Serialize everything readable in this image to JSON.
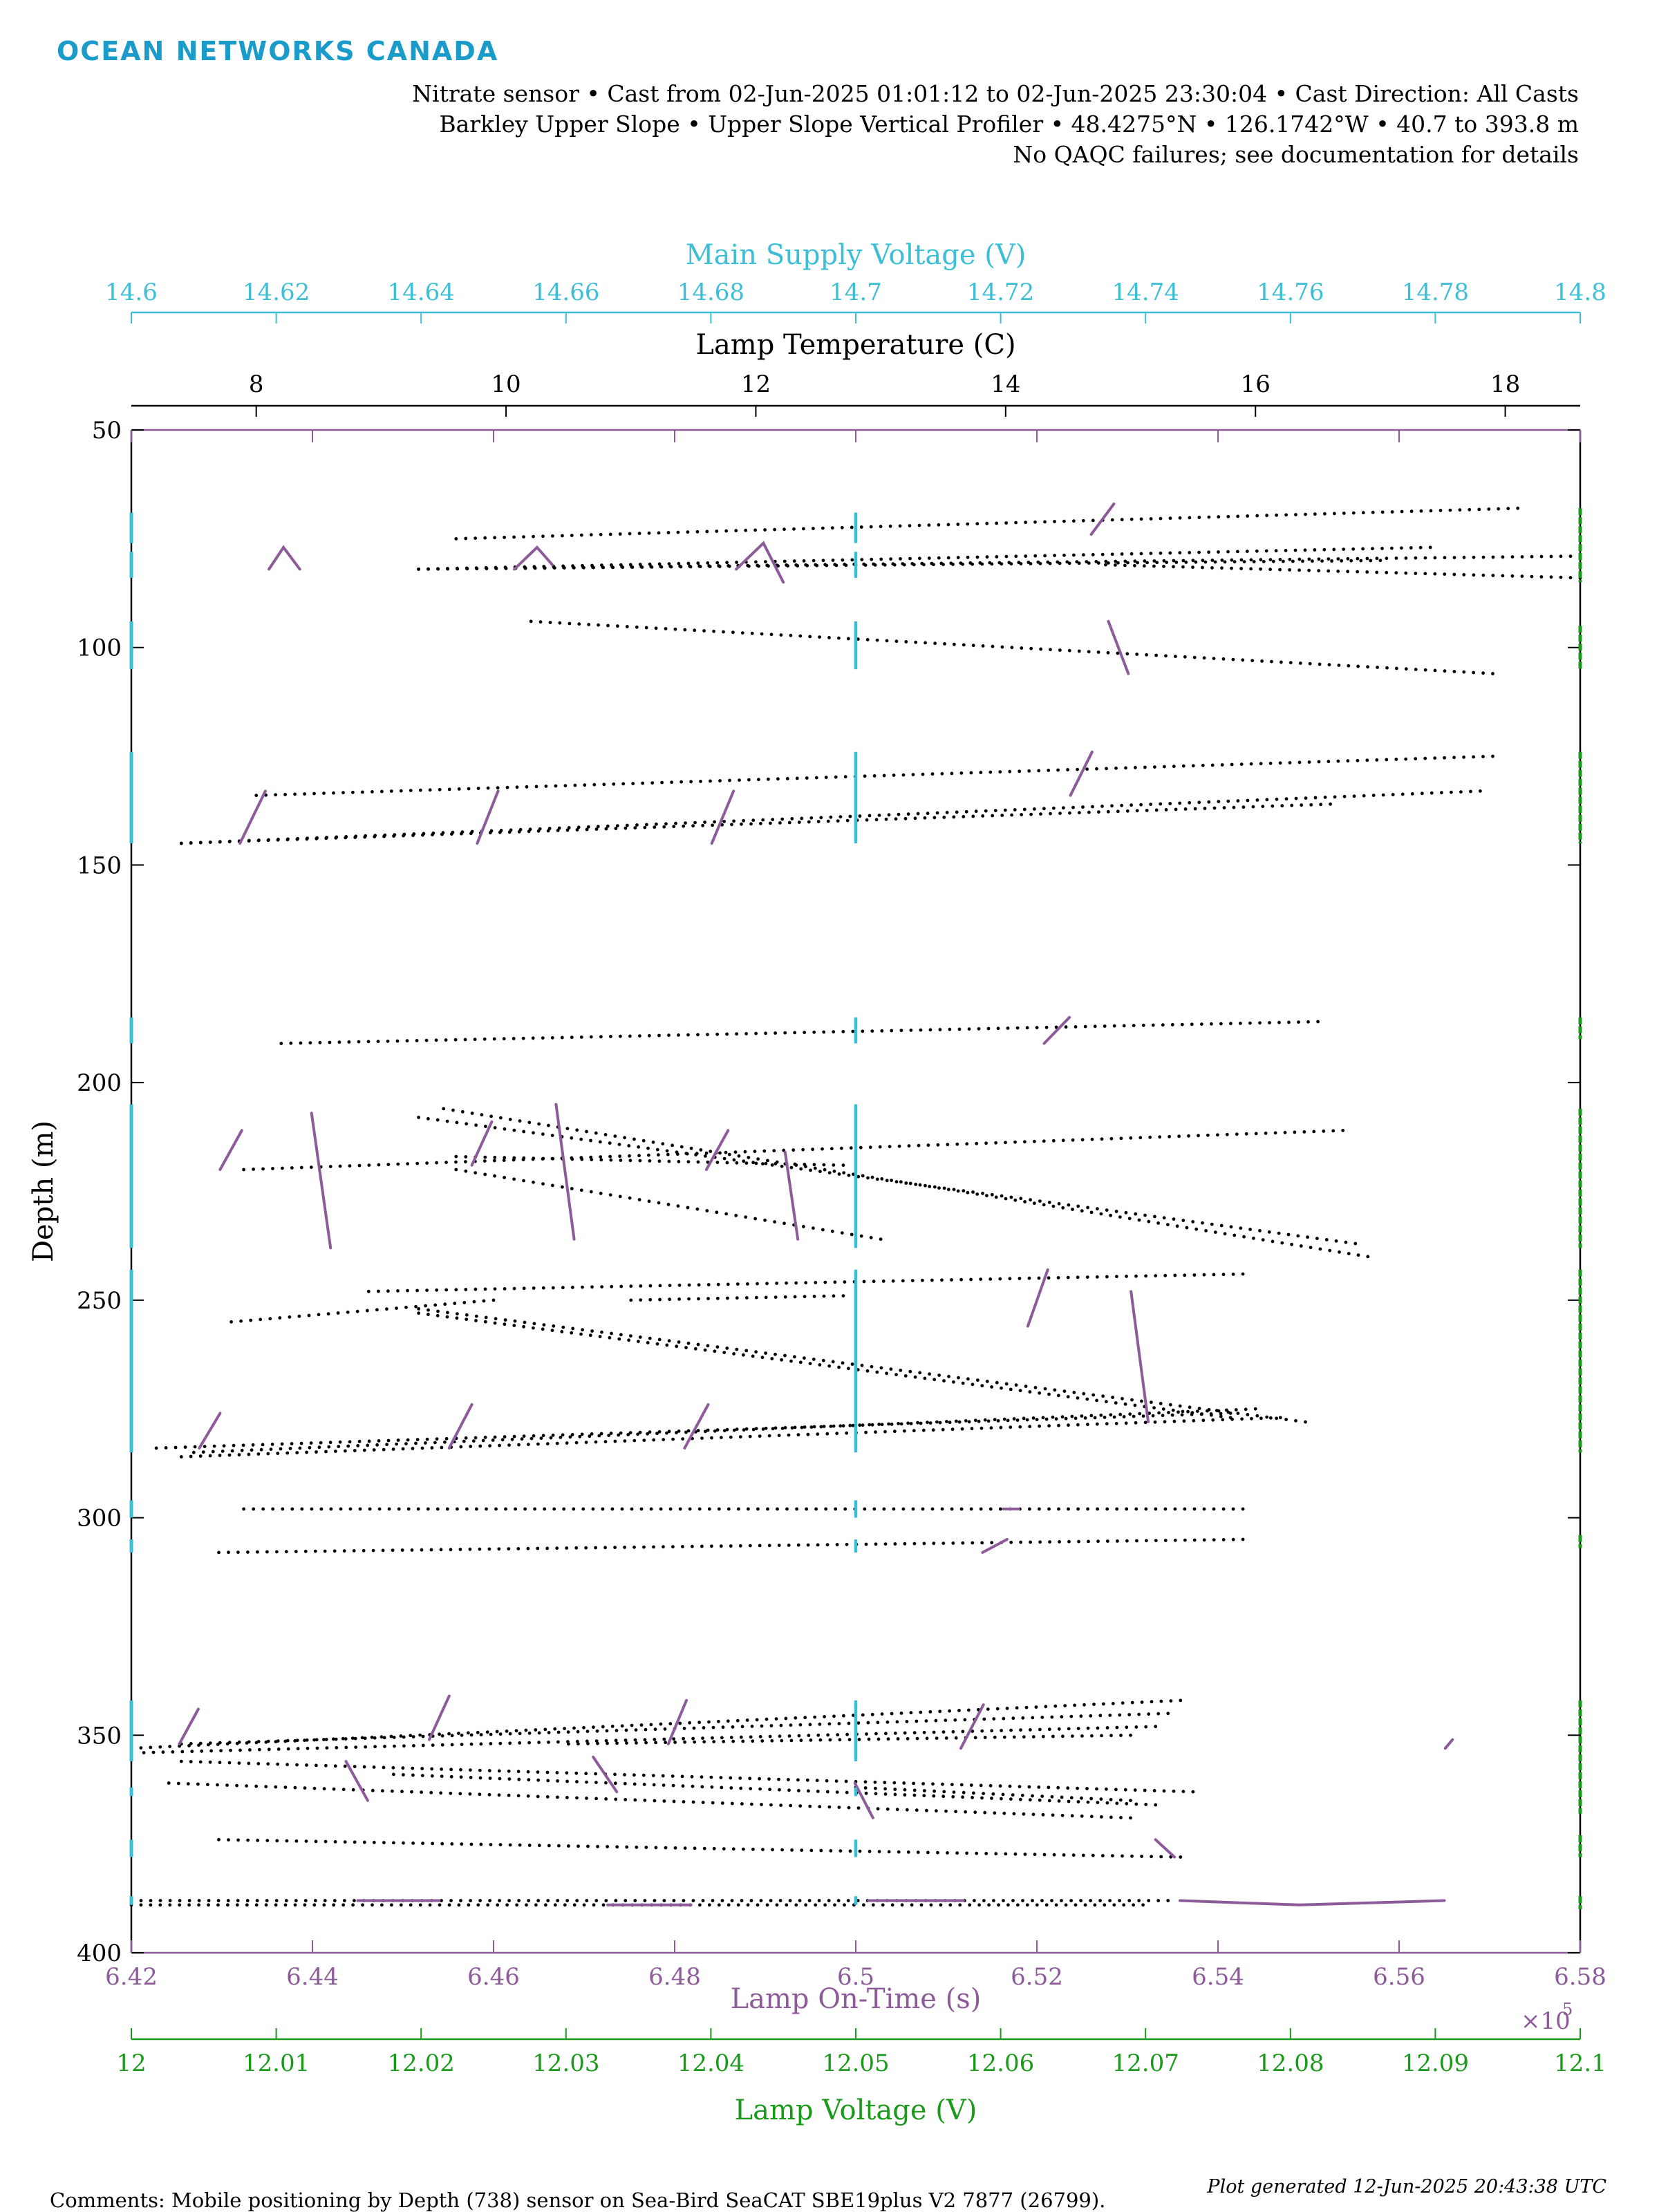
{
  "logo": "OCEAN NETWORKS CANADA",
  "header": {
    "line1": "Nitrate sensor • Cast from 02-Jun-2025 01:01:12 to 02-Jun-2025 23:30:04 • Cast Direction: All Casts",
    "line2": "Barkley Upper Slope • Upper Slope Vertical Profiler • 48.4275°N • 126.1742°W • 40.7 to 393.8 m",
    "line3": "No QAQC failures; see documentation for details"
  },
  "footer": {
    "comments": "Comments: Mobile positioning by Depth (738) sensor on Sea-Bird SeaCAT SBE19plus V2 7877 (26799).",
    "generated": "Plot generated 12-Jun-2025 20:43:38 UTC"
  },
  "chart_data": {
    "type": "scatter",
    "colors": {
      "supply": "#3cbfd6",
      "temp": "#000000",
      "ontime": "#8e5b9a",
      "lamp": "#1a9a1a"
    },
    "y_axis": {
      "label": "Depth (m)",
      "range": [
        50,
        400
      ],
      "ticks": [
        "50",
        "100",
        "150",
        "200",
        "250",
        "300",
        "350",
        "400"
      ],
      "reversed": true
    },
    "axes": {
      "supply": {
        "label": "Main Supply Voltage (V)",
        "range": [
          14.6,
          14.8
        ],
        "ticks": [
          "14.6",
          "14.62",
          "14.64",
          "14.66",
          "14.68",
          "14.7",
          "14.72",
          "14.74",
          "14.76",
          "14.78",
          "14.8"
        ]
      },
      "temp": {
        "label": "Lamp Temperature (C)",
        "range": [
          7,
          18.6
        ],
        "ticks": [
          "8",
          "10",
          "12",
          "14",
          "16",
          "18"
        ]
      },
      "ontime": {
        "label": "Lamp On-Time (s)",
        "range": [
          6.42,
          6.58
        ],
        "ticks": [
          "6.42",
          "6.44",
          "6.46",
          "6.48",
          "6.5",
          "6.52",
          "6.54",
          "6.56",
          "6.58"
        ],
        "multiplier": "×10",
        "exponent": "5"
      },
      "lamp": {
        "label": "Lamp Voltage (V)",
        "range": [
          12,
          12.1
        ],
        "ticks": [
          "12",
          "12.01",
          "12.02",
          "12.03",
          "12.04",
          "12.05",
          "12.06",
          "12.07",
          "12.08",
          "12.09",
          "12.1"
        ]
      }
    },
    "series": [
      {
        "name": "Lamp Temperature (C)",
        "segments": [
          [
            9.6,
            75,
            18.1,
            68
          ],
          [
            9.3,
            82,
            17.4,
            77
          ],
          [
            9.3,
            82,
            18.6,
            79
          ],
          [
            9.3,
            82,
            17.0,
            80
          ],
          [
            14.8,
            81,
            18.6,
            84
          ],
          [
            10.2,
            94,
            17.9,
            106
          ],
          [
            8.0,
            134,
            17.9,
            125
          ],
          [
            7.4,
            145,
            17.8,
            133
          ],
          [
            7.4,
            145,
            16.6,
            136
          ],
          [
            8.2,
            191,
            16.5,
            186
          ],
          [
            9.5,
            206,
            16.9,
            240
          ],
          [
            9.3,
            208,
            16.8,
            237
          ],
          [
            7.9,
            220,
            16.7,
            211
          ],
          [
            9.6,
            217,
            12.7,
            219
          ],
          [
            9.6,
            220,
            13.0,
            236
          ],
          [
            8.9,
            248,
            15.9,
            244
          ],
          [
            7.8,
            255,
            9.9,
            250
          ],
          [
            11.0,
            250,
            12.7,
            249
          ],
          [
            9.3,
            252,
            16.4,
            278
          ],
          [
            9.3,
            253,
            15.8,
            277
          ],
          [
            7.2,
            284,
            15.8,
            276
          ],
          [
            7.5,
            285,
            16.0,
            275
          ],
          [
            7.4,
            286,
            16.2,
            277
          ],
          [
            7.9,
            298,
            15.9,
            298
          ],
          [
            7.7,
            308,
            15.9,
            305
          ],
          [
            7.0,
            353,
            15.4,
            342
          ],
          [
            7.4,
            352,
            15.3,
            345
          ],
          [
            7.1,
            354,
            15.2,
            348
          ],
          [
            10.5,
            352,
            15.0,
            350
          ],
          [
            7.4,
            356,
            15.5,
            363
          ],
          [
            9.1,
            359,
            15.2,
            366
          ],
          [
            7.3,
            361,
            15.0,
            369
          ],
          [
            12.8,
            362,
            15.0,
            365
          ],
          [
            7.7,
            374,
            15.4,
            378
          ],
          [
            7.0,
            388,
            15.3,
            388
          ],
          [
            7.0,
            389,
            15.1,
            389
          ]
        ]
      },
      {
        "name": "Lamp On-Time (s)",
        "polylines": [
          [
            [
              6.4352,
              82
            ],
            [
              6.4368,
              77
            ],
            [
              6.4386,
              82
            ]
          ],
          [
            [
              6.4623,
              82
            ],
            [
              6.4648,
              77
            ],
            [
              6.4665,
              81
            ]
          ],
          [
            [
              6.4868,
              82
            ],
            [
              6.4898,
              76
            ],
            [
              6.492,
              85
            ]
          ],
          [
            [
              6.526,
              74
            ],
            [
              6.5285,
              67
            ]
          ],
          [
            [
              6.5279,
              94
            ],
            [
              6.5301,
              106
            ]
          ],
          [
            [
              6.432,
              145
            ],
            [
              6.4348,
              133
            ]
          ],
          [
            [
              6.4582,
              145
            ],
            [
              6.4605,
              133
            ]
          ],
          [
            [
              6.4841,
              145
            ],
            [
              6.4865,
              133
            ]
          ],
          [
            [
              6.5237,
              134
            ],
            [
              6.5261,
              124
            ]
          ],
          [
            [
              6.5208,
              191
            ],
            [
              6.5236,
              185
            ]
          ],
          [
            [
              6.4298,
              220
            ],
            [
              6.4322,
              211
            ]
          ],
          [
            [
              6.4399,
              207
            ],
            [
              6.442,
              238
            ]
          ],
          [
            [
              6.4576,
              219
            ],
            [
              6.4598,
              209
            ]
          ],
          [
            [
              6.4669,
              205
            ],
            [
              6.4689,
              236
            ]
          ],
          [
            [
              6.4835,
              220
            ],
            [
              6.4859,
              211
            ]
          ],
          [
            [
              6.4922,
              216
            ],
            [
              6.4936,
              236
            ]
          ],
          [
            [
              6.519,
              256
            ],
            [
              6.5212,
              243
            ]
          ],
          [
            [
              6.5304,
              248
            ],
            [
              6.5323,
              278
            ]
          ],
          [
            [
              6.4275,
              284
            ],
            [
              6.4298,
              276
            ]
          ],
          [
            [
              6.4551,
              284
            ],
            [
              6.4576,
              274
            ]
          ],
          [
            [
              6.4811,
              284
            ],
            [
              6.4837,
              274
            ]
          ],
          [
            [
              6.5163,
              298
            ],
            [
              6.518,
              298
            ]
          ],
          [
            [
              6.514,
              308
            ],
            [
              6.5167,
              305
            ]
          ],
          [
            [
              6.4253,
              352
            ],
            [
              6.4274,
              344
            ]
          ],
          [
            [
              6.4437,
              356
            ],
            [
              6.4461,
              365
            ]
          ],
          [
            [
              6.4529,
              351
            ],
            [
              6.4551,
              341
            ]
          ],
          [
            [
              6.471,
              355
            ],
            [
              6.4736,
              363
            ]
          ],
          [
            [
              6.4793,
              352
            ],
            [
              6.4813,
              342
            ]
          ],
          [
            [
              6.4999,
              361
            ],
            [
              6.5019,
              369
            ]
          ],
          [
            [
              6.5116,
              353
            ],
            [
              6.5141,
              343
            ]
          ],
          [
            [
              6.5331,
              374
            ],
            [
              6.5352,
              378
            ]
          ],
          [
            [
              6.5651,
              353
            ],
            [
              6.5659,
              351
            ]
          ],
          [
            [
              6.445,
              388
            ],
            [
              6.454,
              388
            ]
          ],
          [
            [
              6.4726,
              389
            ],
            [
              6.4818,
              389
            ]
          ],
          [
            [
              6.5014,
              388
            ],
            [
              6.5119,
              388
            ]
          ],
          [
            [
              6.5358,
              388
            ],
            [
              6.549,
              389
            ],
            [
              6.565,
              388
            ]
          ]
        ]
      },
      {
        "name": "Main Supply Voltage (V)",
        "points": [
          [
            14.7,
            69,
            76
          ],
          [
            14.7,
            78,
            84
          ],
          [
            14.7,
            94,
            105
          ],
          [
            14.7,
            124,
            145
          ],
          [
            14.7,
            185,
            191
          ],
          [
            14.7,
            205,
            238
          ],
          [
            14.7,
            243,
            285
          ],
          [
            14.7,
            296,
            300
          ],
          [
            14.7,
            305,
            308
          ],
          [
            14.7,
            342,
            356
          ],
          [
            14.7,
            362,
            364
          ],
          [
            14.7,
            374,
            378
          ],
          [
            14.7,
            387,
            389
          ]
        ]
      },
      {
        "name": "Lamp Voltage (V)",
        "points": [
          [
            12.1,
            68,
            85
          ],
          [
            12.1,
            95,
            105
          ],
          [
            12.1,
            124,
            145
          ],
          [
            12.1,
            185,
            190
          ],
          [
            12.1,
            206,
            238
          ],
          [
            12.1,
            243,
            285
          ],
          [
            12.1,
            304,
            307
          ],
          [
            12.1,
            342,
            368
          ],
          [
            12.1,
            373,
            378
          ],
          [
            12.1,
            387,
            390
          ]
        ]
      }
    ]
  }
}
